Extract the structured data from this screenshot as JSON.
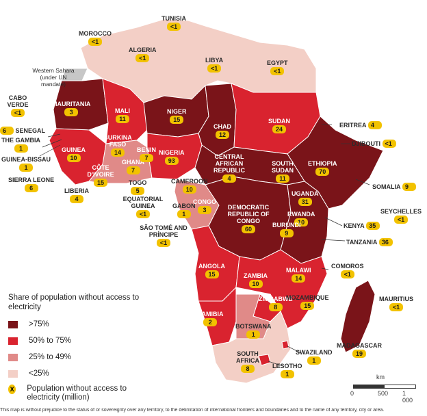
{
  "map_colors": {
    "over_75": "#7a1419",
    "50_to_75": "#d9232f",
    "25_to_49": "#e08a88",
    "under_25": "#f3cfc6",
    "ocean": "#ffffff",
    "western_sahara": "#c7c7c7",
    "badge": "#f2c200"
  },
  "countries": {
    "morocco": {
      "name": "MOROCCO",
      "value": "<1"
    },
    "tunisia": {
      "name": "TUNISIA",
      "value": "<1"
    },
    "algeria": {
      "name": "ALGERIA",
      "value": "<1"
    },
    "libya": {
      "name": "LIBYA",
      "value": "<1"
    },
    "egypt": {
      "name": "EGYPT",
      "value": "<1"
    },
    "western_sahara": {
      "name": "Western Sahara (under UN mandate)"
    },
    "cabo_verde": {
      "name": "CABO VERDE",
      "value": "<1"
    },
    "mauritania": {
      "name": "MAURITANIA",
      "value": "3"
    },
    "mali": {
      "name": "MALI",
      "value": "11"
    },
    "niger": {
      "name": "NIGER",
      "value": "15"
    },
    "chad": {
      "name": "CHAD",
      "value": "12"
    },
    "sudan": {
      "name": "SUDAN",
      "value": "24"
    },
    "eritrea": {
      "name": "ERITREA",
      "value": "4"
    },
    "senegal": {
      "name": "SENEGAL",
      "value": "6"
    },
    "gambia": {
      "name": "THE GAMBIA",
      "value": "1"
    },
    "guinea_bissau": {
      "name": "GUINEA-BISSAU",
      "value": "1"
    },
    "guinea": {
      "name": "GUINEA",
      "value": "10"
    },
    "sierra_leone": {
      "name": "SIERRA LEONE",
      "value": "6"
    },
    "liberia": {
      "name": "LIBERIA",
      "value": "4"
    },
    "burkina_faso": {
      "name": "BURKINA FASO",
      "value": "14"
    },
    "cote_divoire": {
      "name": "CÔTE D'IVOIRE",
      "value": "15"
    },
    "ghana": {
      "name": "GHANA",
      "value": "7"
    },
    "togo": {
      "name": "TOGO",
      "value": "5"
    },
    "benin": {
      "name": "BENIN",
      "value": "7"
    },
    "nigeria": {
      "name": "NIGERIA",
      "value": "93"
    },
    "djibouti": {
      "name": "DJIBOUTI",
      "value": "<1"
    },
    "ethiopia": {
      "name": "ETHIOPIA",
      "value": "70"
    },
    "somalia": {
      "name": "SOMALIA",
      "value": "9"
    },
    "car": {
      "name": "CENTRAL AFRICAN REPUBLIC",
      "value": "4"
    },
    "south_sudan": {
      "name": "SOUTH SUDAN",
      "value": "11"
    },
    "cameroon": {
      "name": "CAMEROON",
      "value": "10"
    },
    "eq_guinea": {
      "name": "EQUATORIAL GUINEA",
      "value": "<1"
    },
    "gabon": {
      "name": "GABON",
      "value": "1"
    },
    "congo": {
      "name": "CONGO",
      "value": "3"
    },
    "drc": {
      "name": "DEMOCRATIC REPUBLIC OF CONGO",
      "value": "60"
    },
    "uganda": {
      "name": "UGANDA",
      "value": "31"
    },
    "rwanda": {
      "name": "RWANDA",
      "value": "10"
    },
    "burundi": {
      "name": "BURUNDI",
      "value": "9"
    },
    "kenya": {
      "name": "KENYA",
      "value": "35"
    },
    "tanzania": {
      "name": "TANZANIA",
      "value": "36"
    },
    "seychelles": {
      "name": "SEYCHELLES",
      "value": "<1"
    },
    "sao_tome": {
      "name": "SÃO TOMÉ AND PRÍNCIPE",
      "value": "<1"
    },
    "angola": {
      "name": "ANGOLA",
      "value": "15"
    },
    "zambia": {
      "name": "ZAMBIA",
      "value": "10"
    },
    "malawi": {
      "name": "MALAWI",
      "value": "14"
    },
    "comoros": {
      "name": "COMOROS",
      "value": "<1"
    },
    "mauritius": {
      "name": "MAURITIUS",
      "value": "<1"
    },
    "namibia": {
      "name": "NAMIBIA",
      "value": "2"
    },
    "zimbabwe": {
      "name": "ZIMBABWE",
      "value": "8"
    },
    "mozambique": {
      "name": "MOZAMBIQUE",
      "value": "15"
    },
    "botswana": {
      "name": "BOTSWANA",
      "value": "1"
    },
    "madagascar": {
      "name": "MADAGASCAR",
      "value": "19"
    },
    "swaziland": {
      "name": "SWAZILAND",
      "value": "1"
    },
    "south_africa": {
      "name": "SOUTH AFRICA",
      "value": "8"
    },
    "lesotho": {
      "name": "LESOTHO",
      "value": "1"
    }
  },
  "legend": {
    "title": "Share of population without access to electricity",
    "item1": ">75%",
    "item2": "50% to 75%",
    "item3": "25% to 49%",
    "item4": "<25%",
    "badge_symbol": "X",
    "badge_text": "Population without access to electricity (million)"
  },
  "scale": {
    "unit": "km",
    "t0": "0",
    "t1": "500",
    "t2": "1 000"
  },
  "footnote": "This map is without prejudice to the status of or sovereignty over any territory, to the delimitation of international frontiers and boundaries and to the name of any territory, city or area."
}
